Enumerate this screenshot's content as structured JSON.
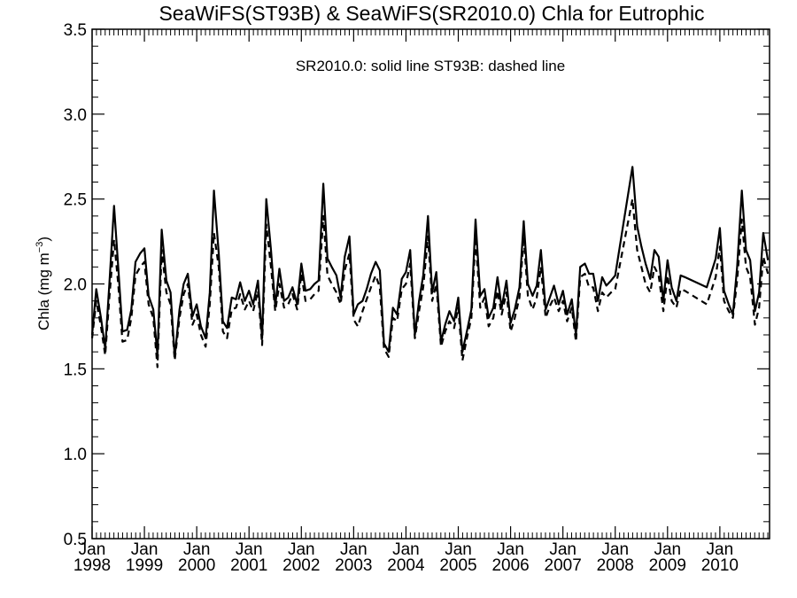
{
  "chart_data": {
    "type": "line",
    "title": "SeaWiFS(ST93B) & SeaWiFS(SR2010.0)  Chla for Eutrophic",
    "ylabel": "Chla (mg m",
    "ylabel_sup": "−3",
    "ylabel_close": ")",
    "annotation": "SR2010.0: solid line   ST93B: dashed line",
    "xlim": [
      1998.0,
      2010.95
    ],
    "ylim": [
      0.5,
      3.5
    ],
    "y_ticks": [
      "0.5",
      "1.0",
      "1.5",
      "2.0",
      "2.5",
      "3.0",
      "3.5"
    ],
    "x_ticks": [
      {
        "month": "Jan",
        "year": "1998"
      },
      {
        "month": "Jan",
        "year": "1999"
      },
      {
        "month": "Jan",
        "year": "2000"
      },
      {
        "month": "Jan",
        "year": "2001"
      },
      {
        "month": "Jan",
        "year": "2002"
      },
      {
        "month": "Jan",
        "year": "2003"
      },
      {
        "month": "Jan",
        "year": "2004"
      },
      {
        "month": "Jan",
        "year": "2005"
      },
      {
        "month": "Jan",
        "year": "2006"
      },
      {
        "month": "Jan",
        "year": "2007"
      },
      {
        "month": "Jan",
        "year": "2008"
      },
      {
        "month": "Jan",
        "year": "2009"
      },
      {
        "month": "Jan",
        "year": "2010"
      }
    ],
    "series": [
      {
        "name": "SR2010.0",
        "style": "solid",
        "x": [
          1998.0,
          1998.08,
          1998.17,
          1998.25,
          1998.33,
          1998.42,
          1998.5,
          1998.58,
          1998.67,
          1998.75,
          1998.83,
          1998.92,
          1999.0,
          1999.08,
          1999.17,
          1999.25,
          1999.33,
          1999.42,
          1999.5,
          1999.58,
          1999.67,
          1999.75,
          1999.83,
          1999.92,
          2000.0,
          2000.08,
          2000.17,
          2000.25,
          2000.33,
          2000.42,
          2000.5,
          2000.58,
          2000.67,
          2000.75,
          2000.83,
          2000.92,
          2001.0,
          2001.08,
          2001.17,
          2001.25,
          2001.33,
          2001.42,
          2001.5,
          2001.58,
          2001.67,
          2001.75,
          2001.83,
          2001.92,
          2002.0,
          2002.08,
          2002.17,
          2002.25,
          2002.33,
          2002.42,
          2002.5,
          2002.58,
          2002.67,
          2002.75,
          2002.83,
          2002.92,
          2003.0,
          2003.08,
          2003.17,
          2003.25,
          2003.33,
          2003.42,
          2003.5,
          2003.58,
          2003.67,
          2003.75,
          2003.83,
          2003.92,
          2004.0,
          2004.08,
          2004.17,
          2004.25,
          2004.33,
          2004.42,
          2004.5,
          2004.58,
          2004.67,
          2004.75,
          2004.83,
          2004.92,
          2005.0,
          2005.08,
          2005.17,
          2005.25,
          2005.33,
          2005.42,
          2005.5,
          2005.58,
          2005.67,
          2005.75,
          2005.83,
          2005.92,
          2006.0,
          2006.08,
          2006.17,
          2006.25,
          2006.33,
          2006.42,
          2006.5,
          2006.58,
          2006.67,
          2006.75,
          2006.83,
          2006.92,
          2007.0,
          2007.08,
          2007.17,
          2007.25,
          2007.33,
          2007.42,
          2007.5,
          2007.58,
          2007.67,
          2007.75,
          2007.83,
          2007.92,
          2008.0,
          2008.33,
          2008.42,
          2008.5,
          2008.58,
          2008.67,
          2008.75,
          2008.83,
          2008.92,
          2009.0,
          2009.08,
          2009.17,
          2009.25,
          2009.33,
          2009.75,
          2009.92,
          2010.0,
          2010.08,
          2010.17,
          2010.25,
          2010.33,
          2010.42,
          2010.5,
          2010.58,
          2010.67,
          2010.75,
          2010.83,
          2010.92
        ],
        "y": [
          1.7,
          1.97,
          1.8,
          1.62,
          2.0,
          2.46,
          2.1,
          1.72,
          1.73,
          1.85,
          2.13,
          2.18,
          2.21,
          1.93,
          1.85,
          1.58,
          2.32,
          2.02,
          1.95,
          1.57,
          1.85,
          2.0,
          2.06,
          1.81,
          1.88,
          1.75,
          1.68,
          1.95,
          2.55,
          2.18,
          1.78,
          1.74,
          1.92,
          1.91,
          2.01,
          1.9,
          1.96,
          1.88,
          2.02,
          1.68,
          2.5,
          2.2,
          1.87,
          2.09,
          1.9,
          1.92,
          1.98,
          1.88,
          2.12,
          1.96,
          1.97,
          2.0,
          2.02,
          2.59,
          2.15,
          2.1,
          2.05,
          1.92,
          2.16,
          2.28,
          1.82,
          1.88,
          1.9,
          1.97,
          2.06,
          2.13,
          2.08,
          1.65,
          1.6,
          1.86,
          1.82,
          2.03,
          2.07,
          2.2,
          1.7,
          1.9,
          2.05,
          2.4,
          1.95,
          2.07,
          1.66,
          1.76,
          1.84,
          1.78,
          1.92,
          1.6,
          1.73,
          1.85,
          2.38,
          1.93,
          1.97,
          1.8,
          1.86,
          2.04,
          1.86,
          2.02,
          1.77,
          1.85,
          1.98,
          2.37,
          2.0,
          1.93,
          1.99,
          2.2,
          1.85,
          1.92,
          1.99,
          1.88,
          1.96,
          1.82,
          1.91,
          1.7,
          2.1,
          2.12,
          2.06,
          2.06,
          1.9,
          2.04,
          1.99,
          2.02,
          2.05,
          2.69,
          2.34,
          2.22,
          2.12,
          2.03,
          2.2,
          2.16,
          1.9,
          2.14,
          1.98,
          1.9,
          2.05,
          2.04,
          1.98,
          2.15,
          2.33,
          1.96,
          1.88,
          1.82,
          2.1,
          2.55,
          2.2,
          2.14,
          1.84,
          1.95,
          2.3,
          2.14
        ]
      },
      {
        "name": "ST93B",
        "style": "dashed",
        "x": [
          1998.0,
          1998.08,
          1998.17,
          1998.25,
          1998.33,
          1998.42,
          1998.5,
          1998.58,
          1998.67,
          1998.75,
          1998.83,
          1998.92,
          1999.0,
          1999.08,
          1999.17,
          1999.25,
          1999.33,
          1999.42,
          1999.5,
          1999.58,
          1999.67,
          1999.75,
          1999.83,
          1999.92,
          2000.0,
          2000.08,
          2000.17,
          2000.25,
          2000.33,
          2000.42,
          2000.5,
          2000.58,
          2000.67,
          2000.75,
          2000.83,
          2000.92,
          2001.0,
          2001.08,
          2001.17,
          2001.25,
          2001.33,
          2001.42,
          2001.5,
          2001.58,
          2001.67,
          2001.75,
          2001.83,
          2001.92,
          2002.0,
          2002.08,
          2002.17,
          2002.25,
          2002.33,
          2002.42,
          2002.5,
          2002.58,
          2002.67,
          2002.75,
          2002.83,
          2002.92,
          2003.0,
          2003.08,
          2003.17,
          2003.25,
          2003.33,
          2003.42,
          2003.5,
          2003.58,
          2003.67,
          2003.75,
          2003.83,
          2003.92,
          2004.0,
          2004.08,
          2004.17,
          2004.25,
          2004.33,
          2004.42,
          2004.5,
          2004.58,
          2004.67,
          2004.75,
          2004.83,
          2004.92,
          2005.0,
          2005.08,
          2005.17,
          2005.25,
          2005.33,
          2005.42,
          2005.5,
          2005.58,
          2005.67,
          2005.75,
          2005.83,
          2005.92,
          2006.0,
          2006.08,
          2006.17,
          2006.25,
          2006.33,
          2006.42,
          2006.5,
          2006.58,
          2006.67,
          2006.75,
          2006.83,
          2006.92,
          2007.0,
          2007.08,
          2007.17,
          2007.25,
          2007.33,
          2007.42,
          2007.5,
          2007.58,
          2007.67,
          2007.75,
          2007.83,
          2007.92,
          2008.0,
          2008.33,
          2008.42,
          2008.5,
          2008.58,
          2008.67,
          2008.75,
          2008.83,
          2008.92,
          2009.0,
          2009.08,
          2009.17,
          2009.25,
          2009.33,
          2009.75,
          2009.92,
          2010.0,
          2010.08,
          2010.17,
          2010.25,
          2010.33,
          2010.42,
          2010.5,
          2010.58,
          2010.67,
          2010.75,
          2010.83,
          2010.92
        ],
        "y": [
          1.68,
          1.9,
          1.75,
          1.58,
          1.92,
          2.26,
          2.0,
          1.66,
          1.67,
          1.8,
          2.05,
          2.1,
          2.13,
          1.88,
          1.8,
          1.51,
          2.2,
          1.95,
          1.88,
          1.55,
          1.8,
          1.94,
          2.0,
          1.76,
          1.82,
          1.7,
          1.63,
          1.88,
          2.3,
          2.1,
          1.72,
          1.68,
          1.85,
          1.86,
          1.94,
          1.85,
          1.9,
          1.84,
          1.96,
          1.64,
          2.35,
          2.1,
          1.84,
          2.0,
          1.86,
          1.88,
          1.94,
          1.85,
          2.06,
          1.9,
          1.91,
          1.94,
          1.96,
          2.4,
          2.05,
          2.0,
          1.95,
          1.88,
          2.08,
          2.18,
          1.79,
          1.75,
          1.84,
          1.91,
          1.98,
          2.05,
          1.98,
          1.62,
          1.57,
          1.8,
          1.78,
          1.97,
          2.0,
          2.12,
          1.68,
          1.84,
          1.98,
          2.28,
          1.9,
          2.0,
          1.63,
          1.72,
          1.78,
          1.74,
          1.86,
          1.55,
          1.69,
          1.8,
          2.28,
          1.86,
          1.92,
          1.75,
          1.8,
          1.96,
          1.82,
          1.95,
          1.72,
          1.8,
          1.92,
          2.28,
          1.93,
          1.85,
          1.92,
          2.1,
          1.8,
          1.87,
          1.92,
          1.84,
          1.9,
          1.78,
          1.86,
          1.66,
          2.04,
          2.06,
          1.98,
          1.98,
          1.84,
          1.95,
          1.92,
          1.95,
          1.97,
          2.5,
          2.2,
          2.1,
          2.0,
          1.95,
          2.1,
          2.05,
          1.84,
          2.05,
          1.9,
          1.86,
          1.97,
          1.96,
          1.88,
          2.04,
          2.22,
          1.9,
          1.84,
          1.8,
          2.02,
          2.38,
          2.1,
          2.04,
          1.76,
          1.86,
          2.16,
          2.06
        ]
      }
    ]
  }
}
